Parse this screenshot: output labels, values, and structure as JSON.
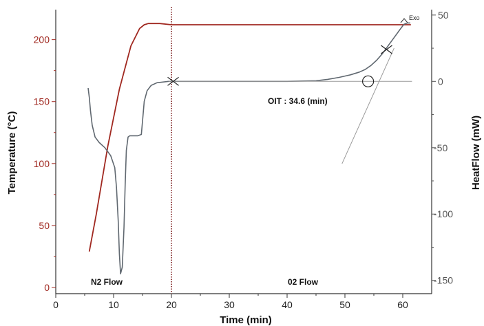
{
  "chart_data": {
    "type": "line",
    "xlabel": "Time (min)",
    "ylabel_left": "Temperature (°C)",
    "ylabel_right": "HeatFlow (mW)",
    "xlim": [
      0,
      65
    ],
    "ylim_left": [
      -5,
      222
    ],
    "ylim_right": [
      -160,
      52
    ],
    "x_ticks": [
      0,
      10,
      20,
      30,
      40,
      50,
      60
    ],
    "y_left_ticks": [
      0,
      50,
      100,
      150,
      200
    ],
    "y_right_ticks": [
      50,
      0,
      -50,
      -100,
      -150
    ],
    "colors": {
      "temperature": "#a02820",
      "heatflow": "#606870",
      "tangent": "#999999",
      "left_axis": "#a02820",
      "right_axis": "#555555"
    },
    "series": [
      {
        "axis": "left",
        "x": [
          5.8,
          7,
          9,
          11,
          13,
          14.5,
          15.3,
          16,
          18,
          20,
          30,
          40,
          50,
          56,
          61.4
        ],
        "y": [
          29,
          59,
          114,
          160,
          195,
          209,
          212,
          213,
          213,
          212,
          212,
          212,
          212,
          212,
          212
        ]
      },
      {
        "axis": "right",
        "x": [
          5.6,
          5.8,
          6.0,
          6.3,
          6.8,
          7.5,
          8.5,
          9.5,
          10.2,
          10.5,
          10.8,
          11.0,
          11.2,
          11.5,
          11.8,
          12.0,
          12.2,
          12.5,
          12.8,
          13.2,
          13.6,
          14.2,
          14.8,
          15.0,
          15.3,
          15.8,
          16.5,
          17.5,
          18.5,
          19.5,
          20.5,
          25,
          30,
          35,
          40,
          45,
          47,
          49,
          51,
          52.5,
          53.5,
          54.5,
          55.5,
          56.5,
          57.5,
          58.5,
          59.5,
          60.2,
          60.8,
          61.3
        ],
        "y": [
          -5,
          -12,
          -22,
          -33,
          -42,
          -46,
          -50,
          -56,
          -65,
          -80,
          -105,
          -130,
          -145,
          -140,
          -110,
          -78,
          -52,
          -42,
          -41,
          -41,
          -41,
          -41,
          -40,
          -30,
          -15,
          -7,
          -3,
          -1,
          -0.5,
          0,
          0,
          0,
          0,
          0,
          0,
          0.5,
          1.5,
          3,
          5,
          7,
          9,
          12,
          16,
          21,
          27,
          33,
          39,
          43,
          44,
          44
        ]
      },
      {
        "axis": "right",
        "x": [
          19.5,
          61.6
        ],
        "y": [
          0,
          0
        ]
      },
      {
        "axis": "right",
        "x": [
          49.5,
          58.5
        ],
        "y": [
          -62,
          25
        ]
      }
    ],
    "markers": [
      {
        "shape": "x",
        "axis": "right",
        "x": 20.3,
        "y": 0
      },
      {
        "shape": "x",
        "axis": "right",
        "x": 57.2,
        "y": 24
      },
      {
        "shape": "circle",
        "axis": "right",
        "x": 54.0,
        "y": 0
      }
    ],
    "vline": {
      "x": 20,
      "style": "dotted"
    },
    "annotations": {
      "oit": "OIT :  34.6  (min)",
      "n2": "N2 Flow",
      "o2": "02 Flow",
      "exo": "Exo"
    }
  }
}
